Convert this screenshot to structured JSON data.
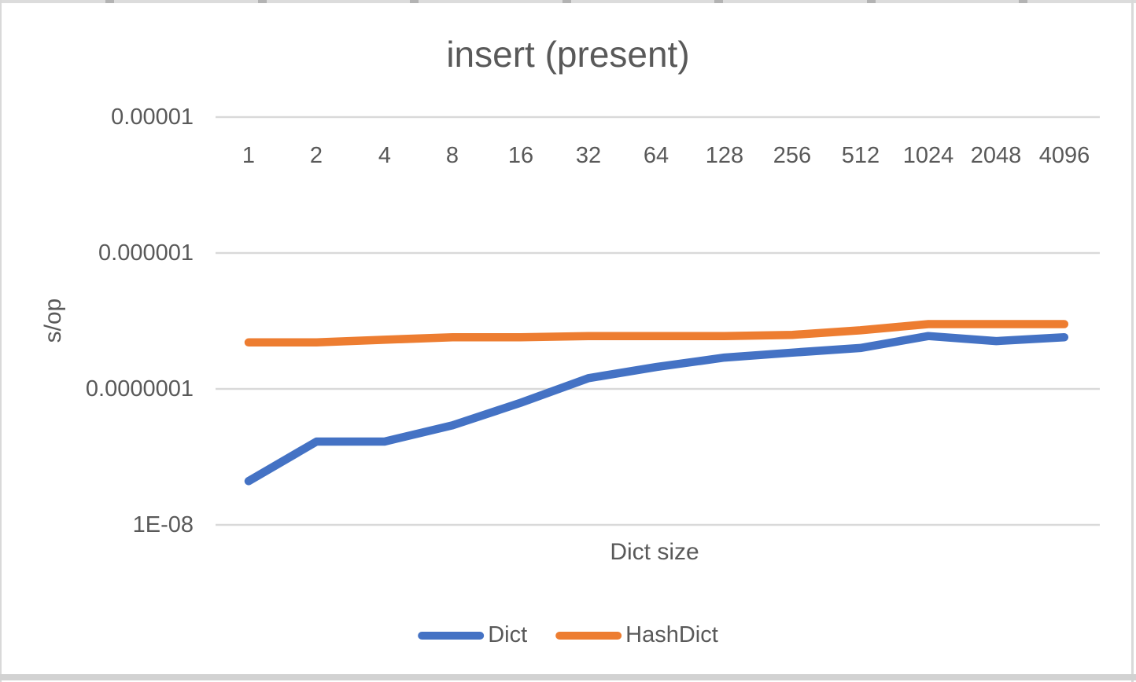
{
  "chart_data": {
    "type": "line",
    "title": "insert (present)",
    "xlabel": "Dict size",
    "ylabel": "s/op",
    "y_scale": "log10",
    "ylim": [
      1e-08,
      1e-05
    ],
    "grid": "horizontal",
    "legend_position": "bottom",
    "y_ticks": [
      {
        "label": "0.00001",
        "value": 1e-05
      },
      {
        "label": "0.000001",
        "value": 1e-06
      },
      {
        "label": "0.0000001",
        "value": 1e-07
      },
      {
        "label": "1E-08",
        "value": 1e-08
      }
    ],
    "categories": [
      "1",
      "2",
      "4",
      "8",
      "16",
      "32",
      "64",
      "128",
      "256",
      "512",
      "1024",
      "2048",
      "4096"
    ],
    "series": [
      {
        "name": "Dict",
        "color": "#4472C4",
        "values": [
          2.1e-08,
          4.1e-08,
          4.1e-08,
          5.4e-08,
          7.9e-08,
          1.2e-07,
          1.45e-07,
          1.7e-07,
          1.85e-07,
          2e-07,
          2.45e-07,
          2.25e-07,
          2.4e-07
        ]
      },
      {
        "name": "HashDict",
        "color": "#ED7D31",
        "values": [
          2.2e-07,
          2.2e-07,
          2.3e-07,
          2.4e-07,
          2.4e-07,
          2.45e-07,
          2.45e-07,
          2.45e-07,
          2.5e-07,
          2.7e-07,
          3e-07,
          3e-07,
          3e-07
        ]
      }
    ],
    "colors": {
      "text": "#595959",
      "gridline": "#D9D9D9"
    }
  }
}
